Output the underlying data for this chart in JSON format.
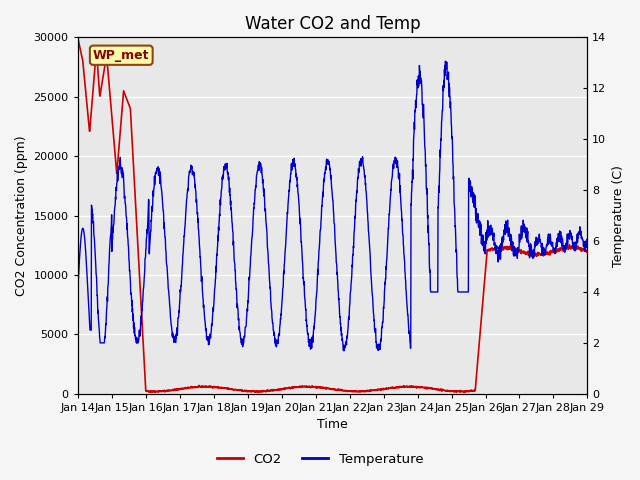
{
  "title": "Water CO2 and Temp",
  "xlabel": "Time",
  "ylabel_left": "CO2 Concentration (ppm)",
  "ylabel_right": "Temperature (C)",
  "co2_ylim": [
    0,
    30000
  ],
  "temp_ylim": [
    0,
    14
  ],
  "co2_yticks": [
    0,
    5000,
    10000,
    15000,
    20000,
    25000,
    30000
  ],
  "temp_yticks": [
    0,
    2,
    4,
    6,
    8,
    10,
    12,
    14
  ],
  "xtick_labels": [
    "Jan 14",
    "Jan 15",
    "Jan 16",
    "Jan 17",
    "Jan 18",
    "Jan 19",
    "Jan 20",
    "Jan 21",
    "Jan 22",
    "Jan 23",
    "Jan 24",
    "Jan 25",
    "Jan 26",
    "Jan 27",
    "Jan 28",
    "Jan 29"
  ],
  "annotation_text": "WP_met",
  "annotation_bg": "#ffffaa",
  "annotation_border": "#8B4513",
  "plot_bg_color": "#e8e8e8",
  "fig_bg_color": "#f5f5f5",
  "co2_color": "#cc0000",
  "temp_color": "#0000cc",
  "legend_co2_label": "CO2",
  "legend_temp_label": "Temperature",
  "title_fontsize": 12,
  "axis_label_fontsize": 9,
  "tick_fontsize": 8
}
